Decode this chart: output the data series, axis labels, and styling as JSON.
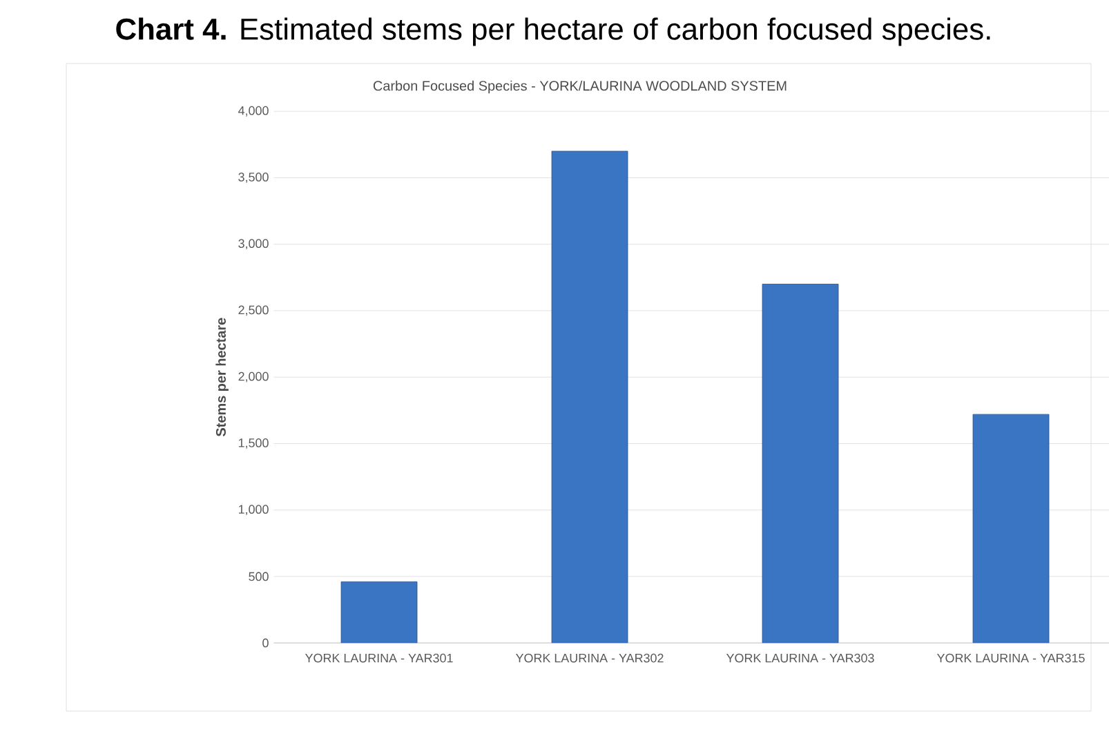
{
  "chart_data": {
    "type": "bar",
    "title": "**Chart 4.** Estimated stems per hectare of carbon focused species.",
    "subtitle": "Carbon Focused Species - YORK/LAURINA WOODLAND SYSTEM",
    "ylabel": "Stems per hectare",
    "categories": [
      "YORK LAURINA - YAR301",
      "YORK LAURINA - YAR302",
      "YORK LAURINA - YAR303",
      "YORK LAURINA - YAR315"
    ],
    "values": [
      460,
      3700,
      2700,
      1720
    ],
    "color": "#3a75c4",
    "ylim": [
      0,
      4000
    ],
    "yticks": [
      {
        "value": 0,
        "label": "0"
      },
      {
        "value": 500,
        "label": "500"
      },
      {
        "value": 1000,
        "label": "1,000"
      },
      {
        "value": 1500,
        "label": "1,500"
      },
      {
        "value": 2000,
        "label": "2,000"
      },
      {
        "value": 2500,
        "label": "2,500"
      },
      {
        "value": 3000,
        "label": "3,000"
      },
      {
        "value": 3500,
        "label": "3,500"
      },
      {
        "value": 4000,
        "label": "4,000"
      }
    ],
    "grid": "y"
  }
}
